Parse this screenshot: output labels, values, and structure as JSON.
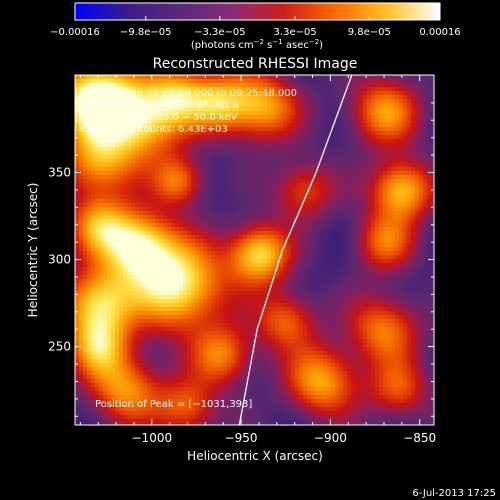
{
  "chart_data": {
    "type": "heatmap",
    "title": "Reconstructed RHESSI Image",
    "xlabel": "Heliocentric X (arcsec)",
    "ylabel": "Heliocentric Y (arcsec)",
    "xlim": [
      -1043,
      -842
    ],
    "ylim": [
      205,
      406
    ],
    "x_ticks": [
      -1000,
      -950,
      -900,
      -850
    ],
    "x_tick_labels": [
      "−1000",
      "−950",
      "−900",
      "−850"
    ],
    "y_ticks": [
      250,
      300,
      350
    ],
    "y_tick_labels": [
      "250",
      "300",
      "350"
    ],
    "colorbar": {
      "range": [
        -0.00016,
        0.00016
      ],
      "ticks": [
        -0.00016,
        -9.8e-05,
        -3.3e-05,
        3.3e-05,
        9.8e-05,
        0.00016
      ],
      "tick_labels": [
        "−0.00016",
        "−9.8e−05",
        "−3.3e−05",
        "3.3e−05",
        "9.8e−05",
        "0.00016"
      ],
      "unit_prefix": "(photons cm",
      "unit_exp1": "−2",
      "unit_mid": " s",
      "unit_exp2": "−1",
      "unit_mid2": " asec",
      "unit_exp3": "−2",
      "unit_suffix": ")",
      "colors": [
        "#0000ff",
        "#3a1c8a",
        "#5a2a7a",
        "#8b2a7a",
        "#cc1f1f",
        "#ff6a00",
        "#ffc12a",
        "#ffffff"
      ]
    },
    "info_lines": [
      "15-Feb-2005 08:21:08.000 to 08:25:48.000",
      "Detectors: 4F 5F 6F 7F 8F, Att 0",
      "Energy Range: 25.0 − 50.0 keV",
      "Clean     Total counts: 6.43E+03"
    ],
    "peak_label": "Position of Peak = [−1031,393]",
    "peak": [
      -1031,
      393
    ],
    "limb_line": [
      [
        -951,
        205
      ],
      [
        -941,
        260
      ],
      [
        -927,
        305
      ],
      [
        -908,
        350
      ],
      [
        -888,
        406
      ]
    ],
    "blobs": [
      {
        "x": -1032,
        "y": 392,
        "v": 1.0,
        "r": 16
      },
      {
        "x": -1005,
        "y": 380,
        "v": 0.75,
        "r": 16
      },
      {
        "x": -1030,
        "y": 355,
        "v": 0.6,
        "r": 14
      },
      {
        "x": -985,
        "y": 395,
        "v": 0.55,
        "r": 12
      },
      {
        "x": -962,
        "y": 390,
        "v": 0.6,
        "r": 12
      },
      {
        "x": -938,
        "y": 388,
        "v": 0.65,
        "r": 14
      },
      {
        "x": -915,
        "y": 340,
        "v": 0.45,
        "r": 12
      },
      {
        "x": -870,
        "y": 385,
        "v": 0.6,
        "r": 14
      },
      {
        "x": -860,
        "y": 340,
        "v": 0.75,
        "r": 12
      },
      {
        "x": -870,
        "y": 310,
        "v": 0.5,
        "r": 12
      },
      {
        "x": -1030,
        "y": 320,
        "v": 0.55,
        "r": 12
      },
      {
        "x": -1008,
        "y": 308,
        "v": 0.85,
        "r": 14
      },
      {
        "x": -985,
        "y": 285,
        "v": 0.9,
        "r": 18
      },
      {
        "x": -1030,
        "y": 275,
        "v": 0.8,
        "r": 14
      },
      {
        "x": -1030,
        "y": 250,
        "v": 0.6,
        "r": 12
      },
      {
        "x": -940,
        "y": 303,
        "v": 0.8,
        "r": 12
      },
      {
        "x": -960,
        "y": 245,
        "v": 0.55,
        "r": 12
      },
      {
        "x": -925,
        "y": 265,
        "v": 0.5,
        "r": 12
      },
      {
        "x": -905,
        "y": 230,
        "v": 0.65,
        "r": 14
      },
      {
        "x": -870,
        "y": 260,
        "v": 0.55,
        "r": 14
      },
      {
        "x": -862,
        "y": 225,
        "v": 0.45,
        "r": 12
      },
      {
        "x": -1015,
        "y": 225,
        "v": 0.6,
        "r": 14
      },
      {
        "x": -980,
        "y": 215,
        "v": 0.5,
        "r": 12
      },
      {
        "x": -985,
        "y": 345,
        "v": 0.55,
        "r": 10
      }
    ]
  },
  "footer": {
    "date": "6-Jul-2013 17:25"
  }
}
